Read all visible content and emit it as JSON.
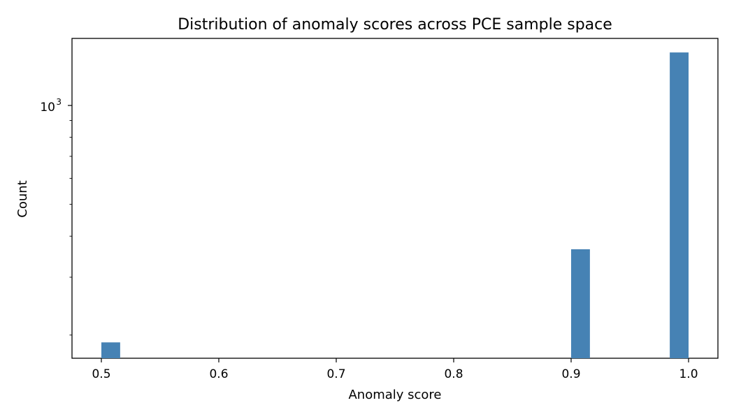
{
  "chart_data": {
    "type": "bar",
    "title": "Distribution of anomaly scores across PCE sample space",
    "xlabel": "Anomaly score",
    "ylabel": "Count",
    "xlim": [
      0.475,
      1.025
    ],
    "ylim": [
      170,
      1600
    ],
    "yscale": "log",
    "bin_width": 0.016,
    "x_ticks": [
      0.5,
      0.6,
      0.7,
      0.8,
      0.9,
      1.0
    ],
    "x_tick_labels": [
      "0.5",
      "0.6",
      "0.7",
      "0.8",
      "0.9",
      "1.0"
    ],
    "y_major_ticks": [
      {
        "value": 1000,
        "base": "10",
        "exp": "3"
      }
    ],
    "y_minor_ticks": [
      200,
      300,
      400,
      500,
      600,
      700,
      800,
      900
    ],
    "bins": [
      {
        "x": 0.508,
        "value": 190
      },
      {
        "x": 0.908,
        "value": 365
      },
      {
        "x": 0.992,
        "value": 1450
      }
    ],
    "bar_color": "#4682b4",
    "grid": false,
    "legend": "none"
  }
}
